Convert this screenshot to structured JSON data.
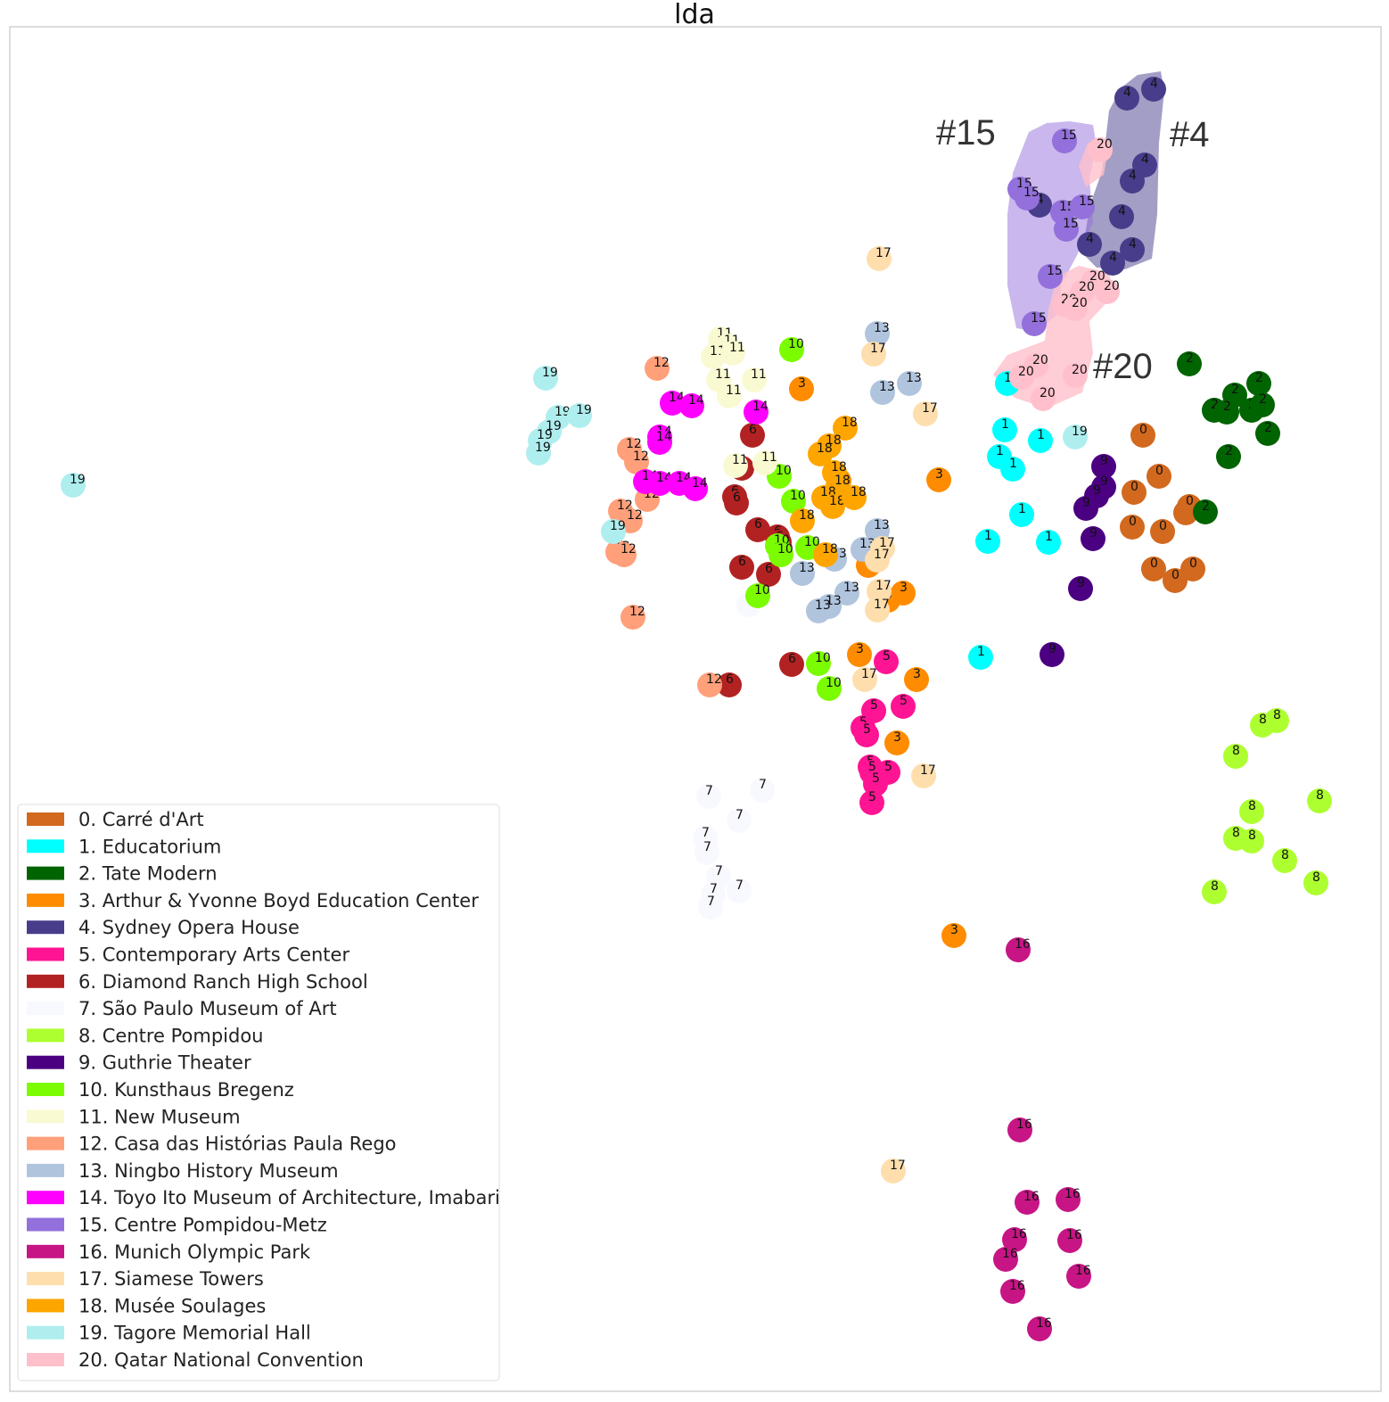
{
  "chart_data": {
    "type": "scatter",
    "title": "lda",
    "xlabel": "",
    "ylabel": "",
    "grid": false,
    "legend_position": "lower-left",
    "highlights": [
      "#15",
      "#4",
      "#20"
    ],
    "categories": [
      {
        "id": 0,
        "label": "0. Carré d'Art",
        "color": "#d2691e"
      },
      {
        "id": 1,
        "label": "1. Educatorium",
        "color": "#00ffff"
      },
      {
        "id": 2,
        "label": "2. Tate Modern",
        "color": "#006400"
      },
      {
        "id": 3,
        "label": "3. Arthur & Yvonne Boyd Education Center",
        "color": "#ff8c00"
      },
      {
        "id": 4,
        "label": "4. Sydney Opera House",
        "color": "#483d8b"
      },
      {
        "id": 5,
        "label": "5. Contemporary Arts Center",
        "color": "#ff1493"
      },
      {
        "id": 6,
        "label": "6. Diamond Ranch High School",
        "color": "#b22222"
      },
      {
        "id": 7,
        "label": "7. São Paulo Museum of Art",
        "color": "#f8f8ff"
      },
      {
        "id": 8,
        "label": "8. Centre Pompidou",
        "color": "#adff2f"
      },
      {
        "id": 9,
        "label": "9. Guthrie Theater",
        "color": "#4b0082"
      },
      {
        "id": 10,
        "label": "10. Kunsthaus Bregenz",
        "color": "#7cfc00"
      },
      {
        "id": 11,
        "label": "11. New Museum",
        "color": "#fafad2"
      },
      {
        "id": 12,
        "label": "12. Casa das Histórias Paula Rego",
        "color": "#ffa07a"
      },
      {
        "id": 13,
        "label": "13. Ningbo History Museum",
        "color": "#b0c4de"
      },
      {
        "id": 14,
        "label": "14. Toyo Ito Museum of Architecture, Imabari",
        "color": "#ff00ff"
      },
      {
        "id": 15,
        "label": "15. Centre Pompidou-Metz",
        "color": "#9370db"
      },
      {
        "id": 16,
        "label": "16. Munich Olympic Park",
        "color": "#c71585"
      },
      {
        "id": 17,
        "label": "17. Siamese Towers",
        "color": "#ffdead"
      },
      {
        "id": 18,
        "label": "18. Musée Soulages",
        "color": "#ffa500"
      },
      {
        "id": 19,
        "label": "19. Tagore Memorial Hall",
        "color": "#afeeee"
      },
      {
        "id": 20,
        "label": "20. Qatar National Convention",
        "color": "#ffc0cb"
      }
    ],
    "points": [
      [
        1282,
        488,
        0
      ],
      [
        1300,
        534,
        0
      ],
      [
        1272,
        552,
        0
      ],
      [
        1270,
        591,
        0
      ],
      [
        1304,
        596,
        0
      ],
      [
        1330,
        575,
        0
      ],
      [
        1334,
        568,
        0
      ],
      [
        1294,
        638,
        0
      ],
      [
        1318,
        651,
        0
      ],
      [
        1338,
        638,
        0
      ],
      [
        1127,
        482,
        1
      ],
      [
        1167,
        494,
        1
      ],
      [
        1121,
        512,
        1
      ],
      [
        1136,
        526,
        1
      ],
      [
        1146,
        577,
        1
      ],
      [
        1108,
        607,
        1
      ],
      [
        1176,
        608,
        1
      ],
      [
        1100,
        737,
        1
      ],
      [
        1130,
        430,
        1
      ],
      [
        1334,
        408,
        2
      ],
      [
        1412,
        430,
        2
      ],
      [
        1385,
        443,
        2
      ],
      [
        1362,
        460,
        2
      ],
      [
        1376,
        462,
        2
      ],
      [
        1404,
        460,
        2
      ],
      [
        1416,
        454,
        2
      ],
      [
        1422,
        486,
        2
      ],
      [
        1378,
        512,
        2
      ],
      [
        1352,
        574,
        2
      ],
      [
        899,
        436,
        3
      ],
      [
        1053,
        538,
        3
      ],
      [
        974,
        634,
        3
      ],
      [
        996,
        673,
        3
      ],
      [
        1013,
        665,
        3
      ],
      [
        964,
        734,
        3
      ],
      [
        1028,
        762,
        3
      ],
      [
        1006,
        833,
        3
      ],
      [
        1070,
        1049,
        3
      ],
      [
        941,
        539,
        3
      ],
      [
        1264,
        110,
        4
      ],
      [
        1294,
        100,
        4
      ],
      [
        1166,
        230,
        4
      ],
      [
        1284,
        185,
        4
      ],
      [
        1270,
        203,
        4
      ],
      [
        1258,
        243,
        4
      ],
      [
        1222,
        274,
        4
      ],
      [
        1270,
        280,
        4
      ],
      [
        1248,
        295,
        4
      ],
      [
        994,
        742,
        5
      ],
      [
        980,
        797,
        5
      ],
      [
        1013,
        792,
        5
      ],
      [
        968,
        816,
        5
      ],
      [
        972,
        824,
        5
      ],
      [
        976,
        860,
        5
      ],
      [
        978,
        866,
        5
      ],
      [
        996,
        866,
        5
      ],
      [
        982,
        879,
        5
      ],
      [
        978,
        900,
        5
      ],
      [
        844,
        488,
        6
      ],
      [
        832,
        525,
        6
      ],
      [
        824,
        557,
        6
      ],
      [
        826,
        564,
        6
      ],
      [
        850,
        594,
        6
      ],
      [
        872,
        602,
        6
      ],
      [
        874,
        608,
        6
      ],
      [
        862,
        644,
        6
      ],
      [
        832,
        636,
        6
      ],
      [
        888,
        745,
        6
      ],
      [
        818,
        768,
        6
      ],
      [
        795,
        893,
        7
      ],
      [
        829,
        920,
        7
      ],
      [
        791,
        940,
        7
      ],
      [
        793,
        956,
        7
      ],
      [
        806,
        983,
        7
      ],
      [
        829,
        999,
        7
      ],
      [
        800,
        1003,
        7
      ],
      [
        797,
        1017,
        7
      ],
      [
        855,
        886,
        7
      ],
      [
        840,
        678,
        7
      ],
      [
        1432,
        808,
        8
      ],
      [
        1416,
        813,
        8
      ],
      [
        1386,
        848,
        8
      ],
      [
        1480,
        898,
        8
      ],
      [
        1404,
        910,
        8
      ],
      [
        1386,
        940,
        8
      ],
      [
        1404,
        943,
        8
      ],
      [
        1441,
        965,
        8
      ],
      [
        1476,
        990,
        8
      ],
      [
        1362,
        1000,
        8
      ],
      [
        1238,
        523,
        9
      ],
      [
        1238,
        546,
        9
      ],
      [
        1230,
        556,
        9
      ],
      [
        1218,
        570,
        9
      ],
      [
        1226,
        604,
        9
      ],
      [
        1212,
        660,
        9
      ],
      [
        1180,
        734,
        9
      ],
      [
        888,
        392,
        10
      ],
      [
        874,
        534,
        10
      ],
      [
        890,
        562,
        10
      ],
      [
        872,
        612,
        10
      ],
      [
        876,
        622,
        10
      ],
      [
        906,
        614,
        10
      ],
      [
        850,
        668,
        10
      ],
      [
        918,
        744,
        10
      ],
      [
        930,
        772,
        10
      ],
      [
        808,
        380,
        11
      ],
      [
        816,
        388,
        11
      ],
      [
        800,
        400,
        11
      ],
      [
        822,
        396,
        11
      ],
      [
        806,
        426,
        11
      ],
      [
        846,
        426,
        11
      ],
      [
        818,
        444,
        11
      ],
      [
        858,
        519,
        11
      ],
      [
        825,
        522,
        11
      ],
      [
        737,
        413,
        12
      ],
      [
        706,
        504,
        12
      ],
      [
        714,
        518,
        12
      ],
      [
        696,
        573,
        12
      ],
      [
        707,
        584,
        12
      ],
      [
        693,
        619,
        12
      ],
      [
        700,
        622,
        12
      ],
      [
        726,
        560,
        12
      ],
      [
        710,
        692,
        12
      ],
      [
        796,
        768,
        12
      ],
      [
        984,
        374,
        13
      ],
      [
        990,
        440,
        13
      ],
      [
        1020,
        430,
        13
      ],
      [
        984,
        595,
        13
      ],
      [
        968,
        616,
        13
      ],
      [
        936,
        627,
        13
      ],
      [
        900,
        643,
        13
      ],
      [
        950,
        665,
        13
      ],
      [
        930,
        680,
        13
      ],
      [
        918,
        685,
        13
      ],
      [
        754,
        452,
        14
      ],
      [
        776,
        455,
        14
      ],
      [
        848,
        462,
        14
      ],
      [
        740,
        490,
        14
      ],
      [
        740,
        496,
        14
      ],
      [
        724,
        540,
        14
      ],
      [
        740,
        542,
        14
      ],
      [
        762,
        542,
        14
      ],
      [
        780,
        548,
        14
      ],
      [
        1194,
        158,
        15
      ],
      [
        1144,
        212,
        15
      ],
      [
        1152,
        222,
        15
      ],
      [
        1192,
        238,
        15
      ],
      [
        1214,
        232,
        15
      ],
      [
        1196,
        257,
        15
      ],
      [
        1178,
        310,
        15
      ],
      [
        1160,
        363,
        15
      ],
      [
        1142,
        1065,
        16
      ],
      [
        1144,
        1267,
        16
      ],
      [
        1152,
        1348,
        16
      ],
      [
        1198,
        1345,
        16
      ],
      [
        1138,
        1390,
        16
      ],
      [
        1200,
        1391,
        16
      ],
      [
        1128,
        1412,
        16
      ],
      [
        1210,
        1431,
        16
      ],
      [
        1136,
        1448,
        16
      ],
      [
        1166,
        1490,
        16
      ],
      [
        986,
        290,
        17
      ],
      [
        980,
        397,
        17
      ],
      [
        1038,
        464,
        17
      ],
      [
        990,
        615,
        17
      ],
      [
        984,
        628,
        17
      ],
      [
        986,
        663,
        17
      ],
      [
        984,
        684,
        17
      ],
      [
        970,
        762,
        17
      ],
      [
        1036,
        870,
        17
      ],
      [
        1002,
        1313,
        17
      ],
      [
        948,
        480,
        18
      ],
      [
        930,
        500,
        18
      ],
      [
        920,
        509,
        18
      ],
      [
        936,
        530,
        18
      ],
      [
        940,
        545,
        18
      ],
      [
        924,
        558,
        18
      ],
      [
        934,
        568,
        18
      ],
      [
        958,
        558,
        18
      ],
      [
        900,
        584,
        18
      ],
      [
        926,
        622,
        18
      ],
      [
        612,
        424,
        19
      ],
      [
        626,
        468,
        19
      ],
      [
        650,
        466,
        19
      ],
      [
        616,
        484,
        19
      ],
      [
        606,
        494,
        19
      ],
      [
        604,
        508,
        19
      ],
      [
        82,
        544,
        19
      ],
      [
        688,
        596,
        19
      ],
      [
        1206,
        490,
        19
      ],
      [
        1234,
        168,
        20
      ],
      [
        1226,
        316,
        20
      ],
      [
        1242,
        327,
        20
      ],
      [
        1214,
        328,
        20
      ],
      [
        1194,
        342,
        20
      ],
      [
        1206,
        346,
        20
      ],
      [
        1162,
        410,
        20
      ],
      [
        1146,
        423,
        20
      ],
      [
        1206,
        421,
        20
      ],
      [
        1170,
        447,
        20
      ]
    ]
  }
}
